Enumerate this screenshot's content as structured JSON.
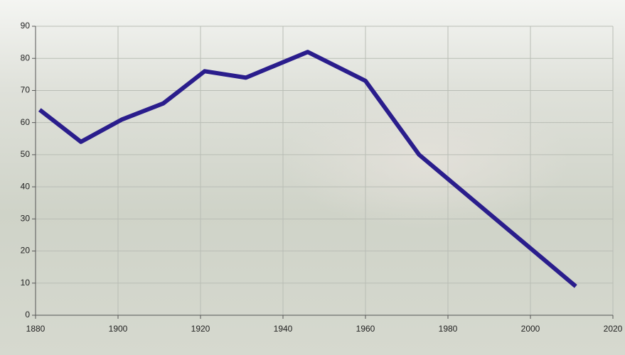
{
  "chart_data": {
    "type": "line",
    "x": [
      1881,
      1891,
      1901,
      1911,
      1921,
      1931,
      1946,
      1960,
      1973,
      2011
    ],
    "series": [
      {
        "color": "#2a1d8c",
        "values": [
          64,
          54,
          61,
          66,
          76,
          74,
          82,
          73,
          50,
          9
        ]
      }
    ],
    "xlim": [
      1880,
      2020
    ],
    "xticks": [
      1880,
      1900,
      1920,
      1940,
      1960,
      1980,
      2000,
      2020
    ],
    "ylim": [
      0,
      90
    ],
    "yticks": [
      0,
      10,
      20,
      30,
      40,
      50,
      60,
      70,
      80,
      90
    ],
    "grid": true
  }
}
